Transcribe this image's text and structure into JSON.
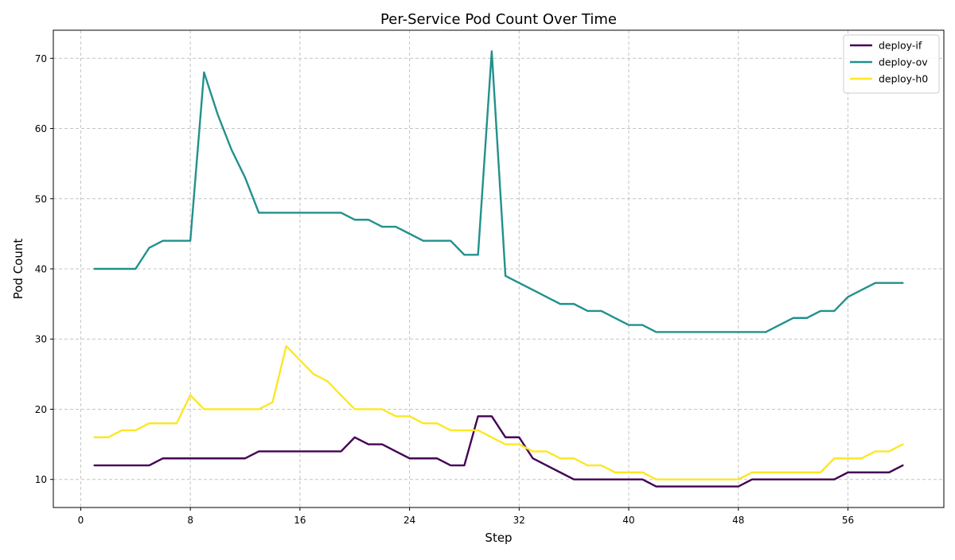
{
  "chart_data": {
    "type": "line",
    "title": "Per-Service Pod Count Over Time",
    "xlabel": "Step",
    "ylabel": "Pod Count",
    "xlim": [
      -2,
      63
    ],
    "ylim": [
      6,
      74
    ],
    "xticks": [
      0,
      8,
      16,
      24,
      32,
      40,
      48,
      56
    ],
    "yticks": [
      10,
      20,
      30,
      40,
      50,
      60,
      70
    ],
    "grid": true,
    "legend_position": "top-right",
    "x": [
      1,
      2,
      3,
      4,
      5,
      6,
      7,
      8,
      9,
      10,
      11,
      12,
      13,
      14,
      15,
      16,
      17,
      18,
      19,
      20,
      21,
      22,
      23,
      24,
      25,
      26,
      27,
      28,
      29,
      30,
      31,
      32,
      33,
      34,
      35,
      36,
      37,
      38,
      39,
      40,
      41,
      42,
      43,
      44,
      45,
      46,
      47,
      48,
      49,
      50,
      51,
      52,
      53,
      54,
      55,
      56,
      57,
      58,
      59,
      60
    ],
    "series": [
      {
        "name": "deploy-if",
        "color": "#440154",
        "values": [
          12,
          12,
          12,
          12,
          12,
          13,
          13,
          13,
          13,
          13,
          13,
          13,
          14,
          14,
          14,
          14,
          14,
          14,
          14,
          16,
          15,
          15,
          14,
          13,
          13,
          13,
          12,
          12,
          19,
          19,
          16,
          16,
          13,
          12,
          11,
          10,
          10,
          10,
          10,
          10,
          10,
          9,
          9,
          9,
          9,
          9,
          9,
          9,
          10,
          10,
          10,
          10,
          10,
          10,
          10,
          11,
          11,
          11,
          11,
          12
        ]
      },
      {
        "name": "deploy-ov",
        "color": "#21918c",
        "values": [
          40,
          40,
          40,
          40,
          43,
          44,
          44,
          44,
          68,
          62,
          57,
          53,
          48,
          48,
          48,
          48,
          48,
          48,
          48,
          47,
          47,
          46,
          46,
          45,
          44,
          44,
          44,
          42,
          42,
          71,
          39,
          38,
          37,
          36,
          35,
          35,
          34,
          34,
          33,
          32,
          32,
          31,
          31,
          31,
          31,
          31,
          31,
          31,
          31,
          31,
          32,
          33,
          33,
          34,
          34,
          36,
          37,
          38,
          38,
          38
        ]
      },
      {
        "name": "deploy-h0",
        "color": "#fde725",
        "values": [
          16,
          16,
          17,
          17,
          18,
          18,
          18,
          22,
          20,
          20,
          20,
          20,
          20,
          21,
          29,
          27,
          25,
          24,
          22,
          20,
          20,
          20,
          19,
          19,
          18,
          18,
          17,
          17,
          17,
          16,
          15,
          15,
          14,
          14,
          13,
          13,
          12,
          12,
          11,
          11,
          11,
          10,
          10,
          10,
          10,
          10,
          10,
          10,
          11,
          11,
          11,
          11,
          11,
          11,
          13,
          13,
          13,
          14,
          14,
          15
        ]
      }
    ]
  }
}
